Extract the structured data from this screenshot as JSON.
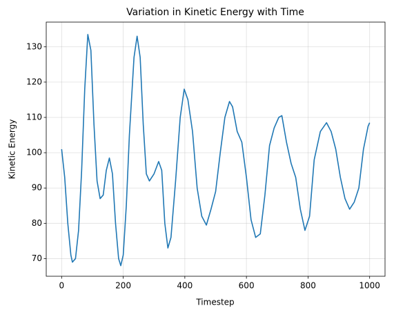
{
  "chart_data": {
    "type": "line",
    "title": "Variation in Kinetic Energy with Time",
    "xlabel": "Timestep",
    "ylabel": "Kinetic Energy",
    "x": [
      0,
      10,
      20,
      30,
      35,
      45,
      55,
      65,
      75,
      85,
      95,
      105,
      115,
      125,
      135,
      145,
      155,
      165,
      175,
      185,
      192,
      200,
      210,
      220,
      235,
      245,
      255,
      265,
      275,
      285,
      300,
      315,
      325,
      335,
      345,
      355,
      370,
      385,
      398,
      410,
      425,
      440,
      455,
      470,
      485,
      500,
      515,
      530,
      545,
      555,
      570,
      585,
      600,
      615,
      630,
      645,
      660,
      675,
      690,
      705,
      715,
      730,
      745,
      760,
      775,
      790,
      805,
      820,
      840,
      860,
      875,
      890,
      905,
      920,
      935,
      950,
      965,
      980,
      995,
      1000
    ],
    "y": [
      101,
      93,
      80,
      71,
      69,
      70,
      78,
      95,
      118,
      133.5,
      129,
      108,
      92,
      87,
      88,
      95,
      98.5,
      94,
      80,
      70,
      68,
      71,
      85,
      105,
      127,
      133,
      127,
      108,
      94,
      92,
      94,
      97.5,
      95,
      80,
      73,
      76,
      92,
      110,
      118,
      115,
      106,
      90,
      82,
      79.5,
      84,
      89,
      100,
      110,
      114.5,
      113,
      106,
      103,
      93,
      81,
      76,
      77,
      88,
      102,
      107,
      110,
      110.5,
      103,
      97,
      93,
      84,
      78,
      82,
      98,
      106,
      108.5,
      106,
      101,
      93,
      87,
      84,
      86,
      90,
      101,
      107.5,
      108.5
    ],
    "color": "#1f77b4",
    "xlim": [
      -50,
      1050
    ],
    "xticks": [
      0,
      200,
      400,
      600,
      800,
      1000
    ],
    "ylim": [
      65,
      137
    ],
    "yticks": [
      70,
      80,
      90,
      100,
      110,
      120,
      130
    ],
    "grid": true
  }
}
